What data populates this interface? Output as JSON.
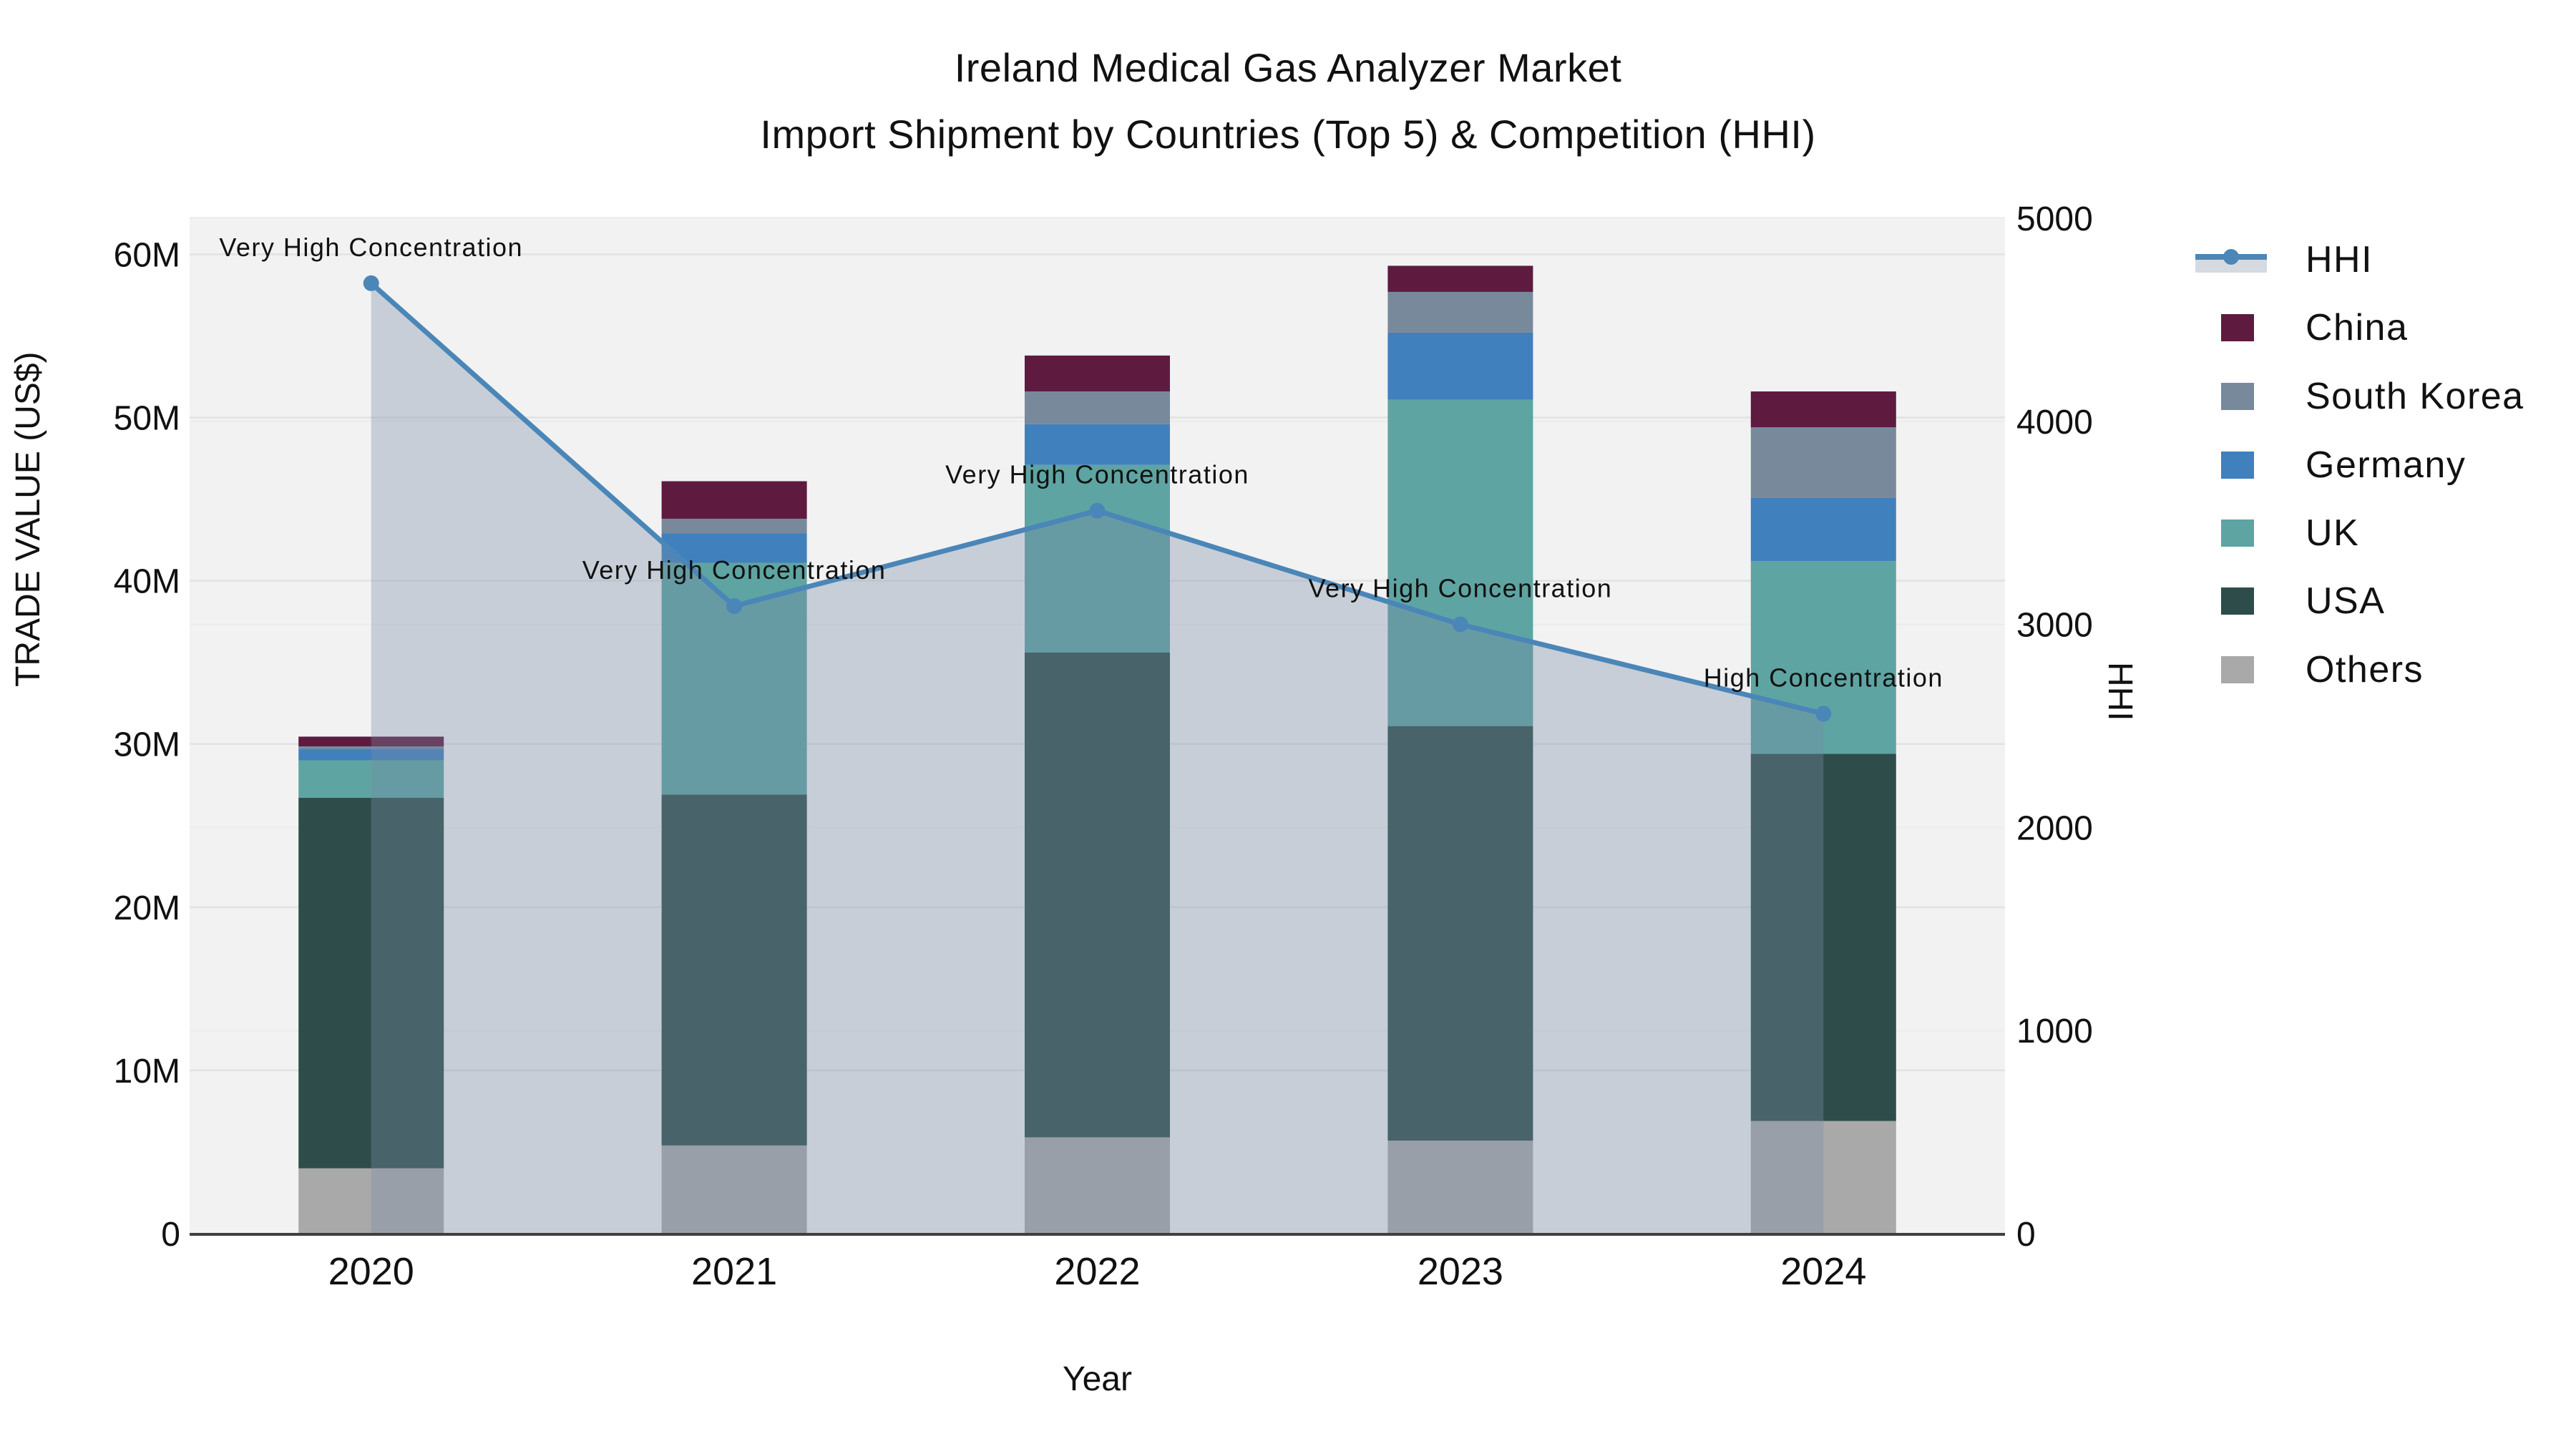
{
  "title": {
    "line1": "Ireland Medical Gas Analyzer Market",
    "line2": "Import Shipment by Countries (Top 5) & Competition (HHI)"
  },
  "axes": {
    "left": {
      "label": "TRADE VALUE (US$)",
      "tick_values": [
        0,
        10,
        20,
        30,
        40,
        50,
        60
      ],
      "tick_labels": [
        "0",
        "10M",
        "20M",
        "30M",
        "40M",
        "50M",
        "60M"
      ]
    },
    "right": {
      "label": "HHI",
      "tick_values": [
        0,
        1000,
        2000,
        3000,
        4000,
        5000
      ],
      "tick_labels": [
        "0",
        "1000",
        "2000",
        "3000",
        "4000",
        "5000"
      ]
    },
    "bottom": {
      "label": "Year",
      "categories": [
        "2020",
        "2021",
        "2022",
        "2023",
        "2024"
      ]
    }
  },
  "legend": [
    {
      "id": "hhi",
      "label": "HHI",
      "type": "line",
      "color": "#4a86b8"
    },
    {
      "id": "china",
      "label": "China",
      "type": "swatch",
      "color": "#5e1b3f"
    },
    {
      "id": "south-korea",
      "label": "South Korea",
      "type": "swatch",
      "color": "#78899c"
    },
    {
      "id": "germany",
      "label": "Germany",
      "type": "swatch",
      "color": "#4080bd"
    },
    {
      "id": "uk",
      "label": "UK",
      "type": "swatch",
      "color": "#5ea4a2"
    },
    {
      "id": "usa",
      "label": "USA",
      "type": "swatch",
      "color": "#2e4d4a"
    },
    {
      "id": "others",
      "label": "Others",
      "type": "swatch",
      "color": "#a9a9a9"
    }
  ],
  "chart_data": {
    "type": "bar",
    "stacked": true,
    "title": "Ireland Medical Gas Analyzer Market — Import Shipment by Countries (Top 5) & Competition (HHI)",
    "xlabel": "Year",
    "ylabel": "TRADE VALUE (US$)",
    "ylabel_right": "HHI",
    "categories": [
      "2020",
      "2021",
      "2022",
      "2023",
      "2024"
    ],
    "units_left": "million US$",
    "ylim_left_M": [
      0,
      62.3
    ],
    "ylim_right": [
      0,
      5007
    ],
    "grid": true,
    "legend_position": "right",
    "series": [
      {
        "name": "Others",
        "color": "#a9a9a9",
        "values": [
          4.0,
          5.4,
          5.9,
          5.7,
          6.9
        ]
      },
      {
        "name": "USA",
        "color": "#2e4d4a",
        "values": [
          22.7,
          21.5,
          29.7,
          25.4,
          22.5
        ]
      },
      {
        "name": "UK",
        "color": "#5ea4a2",
        "values": [
          2.3,
          14.2,
          11.5,
          20.0,
          11.8
        ]
      },
      {
        "name": "Germany",
        "color": "#4080bd",
        "values": [
          0.7,
          1.8,
          2.5,
          4.1,
          3.9
        ]
      },
      {
        "name": "South Korea",
        "color": "#78899c",
        "values": [
          0.15,
          0.9,
          2.0,
          2.5,
          4.3
        ]
      },
      {
        "name": "China",
        "color": "#5e1b3f",
        "values": [
          0.6,
          2.3,
          2.2,
          1.6,
          2.2
        ]
      }
    ],
    "bar_totals_M": [
      30.45,
      46.1,
      53.8,
      59.3,
      51.6
    ],
    "line_series": {
      "name": "HHI",
      "axis": "right",
      "color": "#4a86b8",
      "area_fill": "rgba(120,140,165,0.35)",
      "values": [
        4680,
        3090,
        3560,
        3000,
        2560
      ]
    },
    "annotations": [
      {
        "category": "2020",
        "text": "Very High Concentration"
      },
      {
        "category": "2021",
        "text": "Very High Concentration"
      },
      {
        "category": "2022",
        "text": "Very High Concentration"
      },
      {
        "category": "2023",
        "text": "Very High Concentration"
      },
      {
        "category": "2024",
        "text": "High Concentration"
      }
    ]
  },
  "colors": {
    "plot_bg": "#f2f2f2",
    "grid_major": "#e2e2e2",
    "grid_minor": "#ececec",
    "axis_line": "#3f3f3f",
    "text": "#111111",
    "hhi_line": "#4a86b8",
    "area_fill": "rgba(120,140,165,0.35)",
    "legend_band": "#d5dae1"
  }
}
